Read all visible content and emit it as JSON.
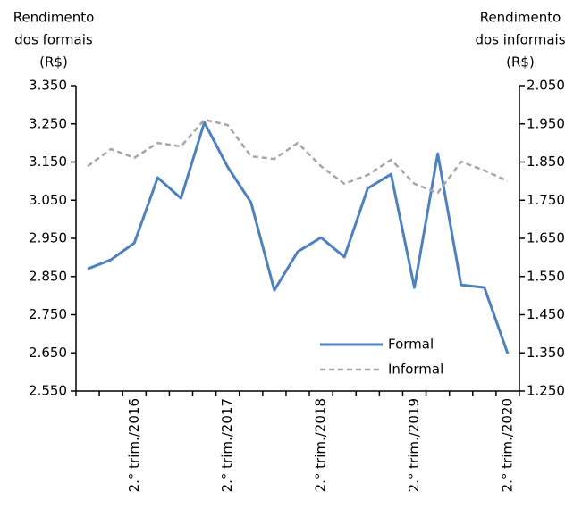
{
  "chart_data": {
    "type": "line",
    "y_label": [
      "Rendimento",
      "dos formais",
      "(R$)"
    ],
    "y2_label": [
      "Rendimento",
      "dos informais",
      "(R$)"
    ],
    "categories": [
      null,
      null,
      "2.° trim./2016",
      null,
      null,
      null,
      "2.° trim./2017",
      null,
      null,
      null,
      "2.° trim./2018",
      null,
      null,
      null,
      "2.° trim./2019",
      null,
      null,
      null,
      "2.° trim./2020"
    ],
    "series": [
      {
        "name": "Formal",
        "color": "#4f81bd",
        "dash": false,
        "values": [
          2870,
          2894,
          2938,
          3109,
          3055,
          3254,
          3137,
          3044,
          2814,
          2915,
          2952,
          2901,
          3081,
          3118,
          2821,
          3172,
          2828,
          2821,
          2648
        ]
      },
      {
        "name": "Informal",
        "color": "#a6a6a6",
        "dash": true,
        "axis": "y2",
        "values": [
          1839,
          1884,
          1861,
          1900,
          1891,
          1961,
          1947,
          1865,
          1858,
          1900,
          1839,
          1793,
          1816,
          1856,
          1793,
          1769,
          1851,
          1828,
          1800
        ]
      }
    ],
    "ylim": [
      2550,
      3350
    ],
    "yticks": [
      {
        "value": 2550,
        "label": "2.550"
      },
      {
        "value": 2650,
        "label": "2.650"
      },
      {
        "value": 2750,
        "label": "2.750"
      },
      {
        "value": 2850,
        "label": "2.850"
      },
      {
        "value": 2950,
        "label": "2.950"
      },
      {
        "value": 3050,
        "label": "3.050"
      },
      {
        "value": 3150,
        "label": "3.150"
      },
      {
        "value": 3250,
        "label": "3.250"
      },
      {
        "value": 3350,
        "label": "3.350"
      }
    ],
    "y2lim": [
      1250,
      2050
    ],
    "y2ticks": [
      {
        "value": 1250,
        "label": "1.250"
      },
      {
        "value": 1350,
        "label": "1.350"
      },
      {
        "value": 1450,
        "label": "1.450"
      },
      {
        "value": 1550,
        "label": "1.550"
      },
      {
        "value": 1650,
        "label": "1.650"
      },
      {
        "value": 1750,
        "label": "1.750"
      },
      {
        "value": 1850,
        "label": "1.850"
      },
      {
        "value": 1950,
        "label": "1.950"
      },
      {
        "value": 2050,
        "label": "2.050"
      }
    ],
    "grid": false,
    "legend": "lower right"
  }
}
